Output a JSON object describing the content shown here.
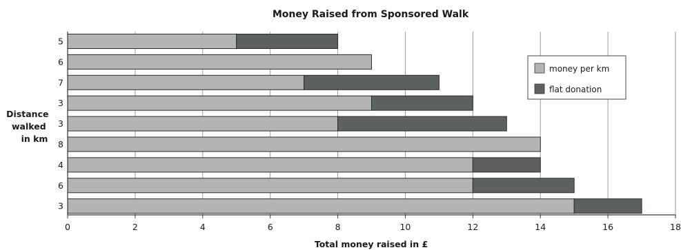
{
  "chart_data": {
    "type": "bar",
    "orientation": "horizontal",
    "stacked": true,
    "title": "Money Raised from Sponsored Walk",
    "xlabel": "Total money raised in £",
    "ylabel_lines": [
      "Distance",
      "walked",
      "in km"
    ],
    "xlim": [
      0,
      18
    ],
    "xticks": [
      0,
      2,
      4,
      6,
      8,
      10,
      12,
      14,
      16,
      18
    ],
    "grid": "vertical",
    "legend_position": "top-right",
    "categories": [
      "5",
      "6",
      "7",
      "3",
      "3",
      "8",
      "4",
      "6",
      "3"
    ],
    "series": [
      {
        "name": "money per km",
        "color": "#b4b4b4",
        "values": [
          5,
          9,
          7,
          9,
          8,
          14,
          12,
          12,
          15
        ]
      },
      {
        "name": "flat donation",
        "color": "#5c625d",
        "values": [
          3,
          0,
          4,
          3,
          5,
          0,
          2,
          3,
          2
        ]
      }
    ]
  }
}
